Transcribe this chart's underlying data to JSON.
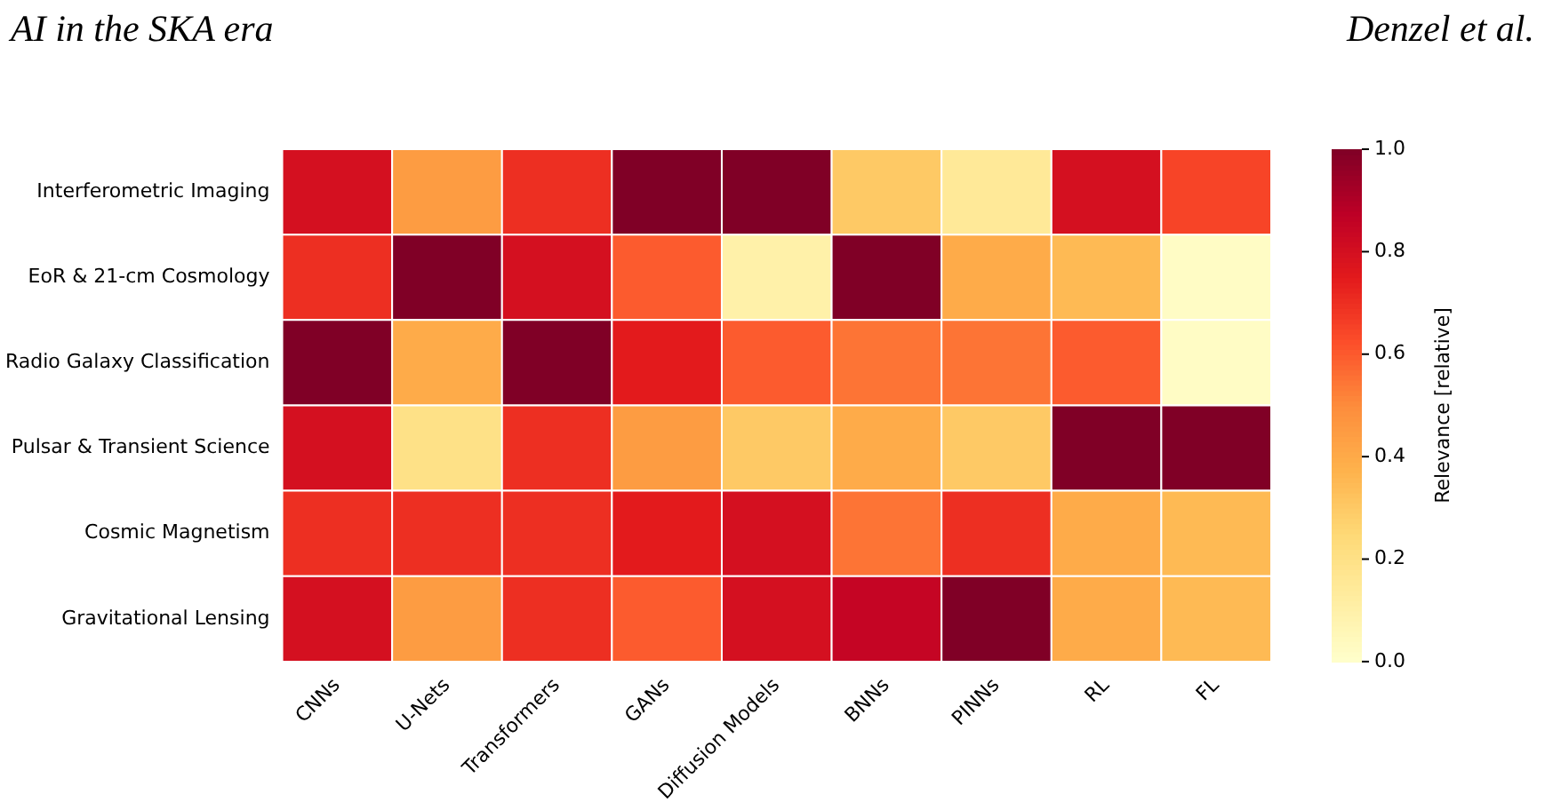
{
  "chart_data": {
    "type": "heatmap",
    "annotations": [
      "AI in the SKA era",
      "Denzel et al."
    ],
    "clabel": "Relevance [relative]",
    "categories": [
      "CNNs",
      "U-Nets",
      "Transformers",
      "GANs",
      "Diffusion Models",
      "BNNs",
      "PINNs",
      "RL",
      "FL"
    ],
    "y_categories": [
      "Interferometric Imaging",
      "EoR & 21-cm Cosmology",
      "Radio Galaxy Classification",
      "Pulsar & Transient Science",
      "Cosmic Magnetism",
      "Gravitational Lensing"
    ],
    "cells": [
      [
        0.8,
        0.45,
        0.7,
        1.0,
        1.0,
        0.3,
        0.15,
        0.8,
        0.65
      ],
      [
        0.7,
        1.0,
        0.8,
        0.6,
        0.1,
        1.0,
        0.4,
        0.35,
        0.02
      ],
      [
        1.0,
        0.4,
        1.0,
        0.75,
        0.6,
        0.55,
        0.55,
        0.6,
        0.02
      ],
      [
        0.8,
        0.2,
        0.7,
        0.45,
        0.3,
        0.4,
        0.3,
        1.0,
        1.0
      ],
      [
        0.7,
        0.7,
        0.7,
        0.75,
        0.8,
        0.55,
        0.7,
        0.4,
        0.35
      ],
      [
        0.8,
        0.45,
        0.7,
        0.6,
        0.8,
        0.85,
        1.0,
        0.4,
        0.35
      ]
    ],
    "clim": [
      0,
      1
    ],
    "cticks": [
      {
        "value": 0,
        "label": "0.0"
      },
      {
        "value": 0.2,
        "label": "0.2"
      },
      {
        "value": 0.4,
        "label": "0.4"
      },
      {
        "value": 0.6,
        "label": "0.6"
      },
      {
        "value": 0.8,
        "label": "0.8"
      },
      {
        "value": 1,
        "label": "1.0"
      }
    ]
  }
}
